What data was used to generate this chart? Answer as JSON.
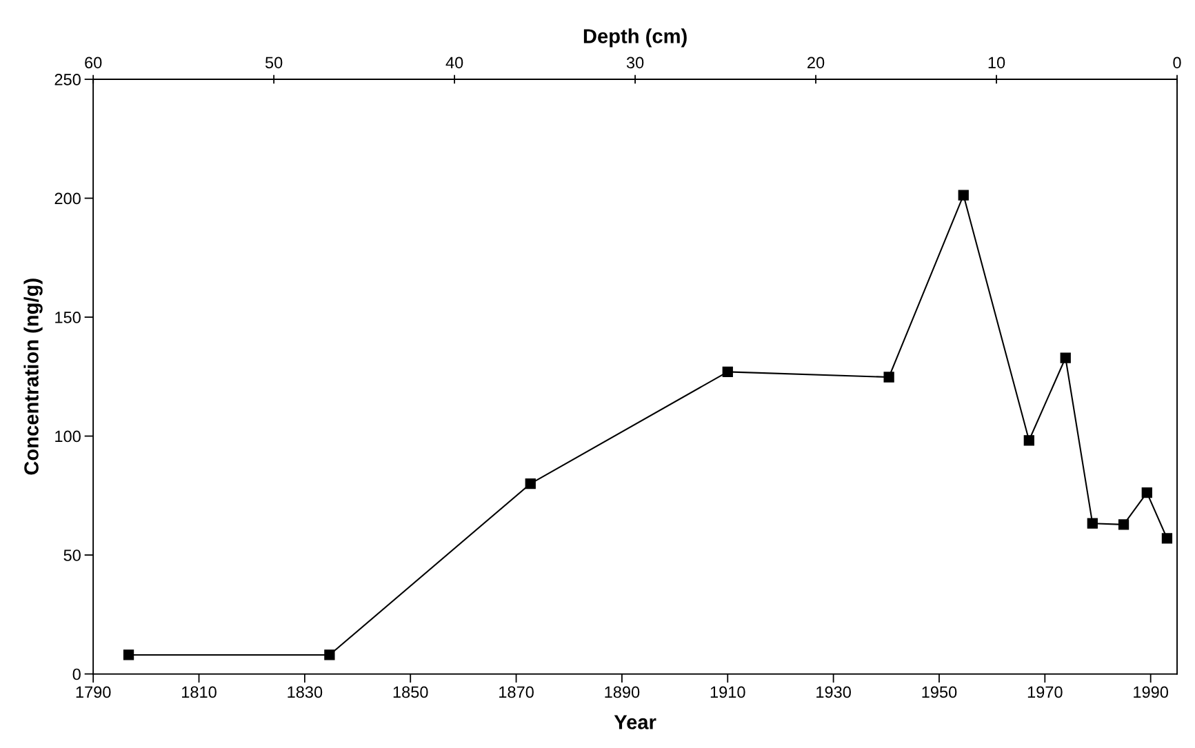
{
  "chart_data": {
    "type": "line",
    "xlabel": "Year",
    "ylabel": "Concentration (ng/g)",
    "x2label": "Depth (cm)",
    "x": [
      1796.7,
      1834.7,
      1872.7,
      1910.0,
      1940.5,
      1954.6,
      1967.0,
      1973.9,
      1979.0,
      1984.9,
      1989.3,
      1993.1
    ],
    "series": [
      {
        "color": "#000000",
        "values": [
          8,
          8,
          80,
          127,
          124.8,
          201.3,
          98.2,
          132.9,
          63.3,
          62.8,
          76.2,
          57.0
        ]
      }
    ],
    "xlim": [
      1790,
      1995
    ],
    "xticks": [
      1790,
      1810,
      1830,
      1850,
      1870,
      1890,
      1910,
      1930,
      1950,
      1970,
      1990
    ],
    "ylim": [
      0,
      250
    ],
    "yticks": [
      0,
      50,
      100,
      150,
      200,
      250
    ],
    "x2lim": [
      60,
      0
    ],
    "x2ticks": [
      60,
      50,
      40,
      30,
      20,
      10,
      0
    ],
    "marker": "square",
    "line_style": "solid",
    "grid": false,
    "legend": false
  }
}
